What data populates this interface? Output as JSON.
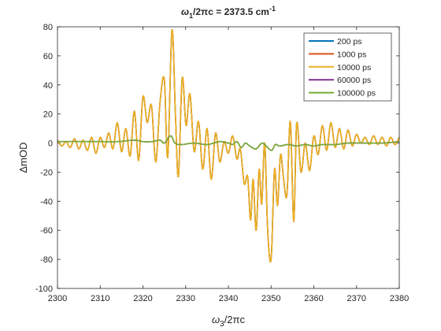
{
  "chart_data": {
    "type": "line",
    "title": {
      "main": "ω",
      "sub": "1",
      "rest": "/2πc = 2373.5 cm",
      "sup": "-1"
    },
    "xlabel": {
      "main": "ω",
      "sub": "3",
      "rest": "/2πc"
    },
    "ylabel": "ΔmOD",
    "xlim": [
      2300,
      2380
    ],
    "ylim": [
      -100,
      80
    ],
    "xticks": [
      2300,
      2310,
      2320,
      2330,
      2340,
      2350,
      2360,
      2370,
      2380
    ],
    "yticks": [
      80,
      60,
      40,
      20,
      0,
      -20,
      -40,
      -60,
      -80,
      -100
    ],
    "grid": false,
    "legend_position": "top-right",
    "series": [
      {
        "name": "200 ps",
        "color": "#0072bd",
        "style": "osc"
      },
      {
        "name": "1000 ps",
        "color": "#d95319",
        "style": "osc"
      },
      {
        "name": "10000 ps",
        "color": "#edb120",
        "style": "osc",
        "anchors": [
          [
            2300,
            2
          ],
          [
            2301,
            -2
          ],
          [
            2302,
            1
          ],
          [
            2303,
            -3
          ],
          [
            2304,
            3
          ],
          [
            2305,
            -4
          ],
          [
            2306,
            2
          ],
          [
            2307,
            -5
          ],
          [
            2308,
            4
          ],
          [
            2309,
            -7
          ],
          [
            2310,
            4
          ],
          [
            2311,
            -3
          ],
          [
            2312,
            7
          ],
          [
            2313,
            -4
          ],
          [
            2314,
            14
          ],
          [
            2315,
            -6
          ],
          [
            2316,
            10
          ],
          [
            2317,
            -9
          ],
          [
            2318,
            22
          ],
          [
            2319,
            -12
          ],
          [
            2320,
            32
          ],
          [
            2321,
            14
          ],
          [
            2322,
            26
          ],
          [
            2323,
            -13
          ],
          [
            2324,
            28
          ],
          [
            2325,
            44
          ],
          [
            2325.8,
            -10
          ],
          [
            2326.8,
            78
          ],
          [
            2327.6,
            20
          ],
          [
            2328.3,
            -23
          ],
          [
            2329.2,
            45
          ],
          [
            2330.1,
            12
          ],
          [
            2331,
            34
          ],
          [
            2332,
            -6
          ],
          [
            2333,
            15
          ],
          [
            2334,
            -18
          ],
          [
            2335,
            10
          ],
          [
            2336,
            -25
          ],
          [
            2337,
            7
          ],
          [
            2338,
            -13
          ],
          [
            2339,
            1
          ],
          [
            2340,
            -7
          ],
          [
            2341,
            5
          ],
          [
            2342,
            -11
          ],
          [
            2342.8,
            -4
          ],
          [
            2343.7,
            -28
          ],
          [
            2344.5,
            -23
          ],
          [
            2345.2,
            -53
          ],
          [
            2345.8,
            -25
          ],
          [
            2346.5,
            -60
          ],
          [
            2347.2,
            -18
          ],
          [
            2347.8,
            -42
          ],
          [
            2348.5,
            0
          ],
          [
            2349.2,
            -60
          ],
          [
            2350,
            -80
          ],
          [
            2350.8,
            -18
          ],
          [
            2351.5,
            -43
          ],
          [
            2352.2,
            -8
          ],
          [
            2352.9,
            -24
          ],
          [
            2353.7,
            -36
          ],
          [
            2354.5,
            15
          ],
          [
            2355.3,
            -54
          ],
          [
            2356,
            14
          ],
          [
            2357,
            -20
          ],
          [
            2358,
            0
          ],
          [
            2359,
            -19
          ],
          [
            2360,
            5
          ],
          [
            2361,
            -8
          ],
          [
            2362,
            12
          ],
          [
            2363,
            -5
          ],
          [
            2364,
            14
          ],
          [
            2365,
            -3
          ],
          [
            2366,
            10
          ],
          [
            2367,
            -4
          ],
          [
            2368,
            9
          ],
          [
            2369,
            -2
          ],
          [
            2370,
            6
          ],
          [
            2371,
            0
          ],
          [
            2372,
            4
          ],
          [
            2373,
            -1
          ],
          [
            2374,
            5
          ],
          [
            2375,
            -1
          ],
          [
            2376,
            4
          ],
          [
            2377,
            -2
          ],
          [
            2378,
            4
          ],
          [
            2379,
            -1
          ],
          [
            2380,
            4
          ]
        ]
      },
      {
        "name": "60000 ps",
        "color": "#7e2f8e",
        "style": "flat"
      },
      {
        "name": "100000 ps",
        "color": "#77ac30",
        "style": "flat",
        "anchors": [
          [
            2300,
            1
          ],
          [
            2305,
            1
          ],
          [
            2310,
            1
          ],
          [
            2314,
            1
          ],
          [
            2318,
            2
          ],
          [
            2320,
            1
          ],
          [
            2322,
            1
          ],
          [
            2324,
            2
          ],
          [
            2325,
            0
          ],
          [
            2326.5,
            5
          ],
          [
            2327.5,
            0
          ],
          [
            2329,
            -1
          ],
          [
            2332,
            0
          ],
          [
            2335,
            -1
          ],
          [
            2338,
            1
          ],
          [
            2340,
            0
          ],
          [
            2341,
            -1
          ],
          [
            2342,
            1
          ],
          [
            2343,
            -3
          ],
          [
            2344,
            0
          ],
          [
            2345,
            -2
          ],
          [
            2346.5,
            -4
          ],
          [
            2348,
            0
          ],
          [
            2350,
            -5
          ],
          [
            2351,
            -1
          ],
          [
            2352,
            -2
          ],
          [
            2354,
            -1
          ],
          [
            2356,
            -2
          ],
          [
            2358,
            -1
          ],
          [
            2360,
            -2
          ],
          [
            2362,
            -1
          ],
          [
            2365,
            -1
          ],
          [
            2368,
            0
          ],
          [
            2372,
            0
          ],
          [
            2376,
            0
          ],
          [
            2380,
            1
          ]
        ]
      }
    ]
  }
}
